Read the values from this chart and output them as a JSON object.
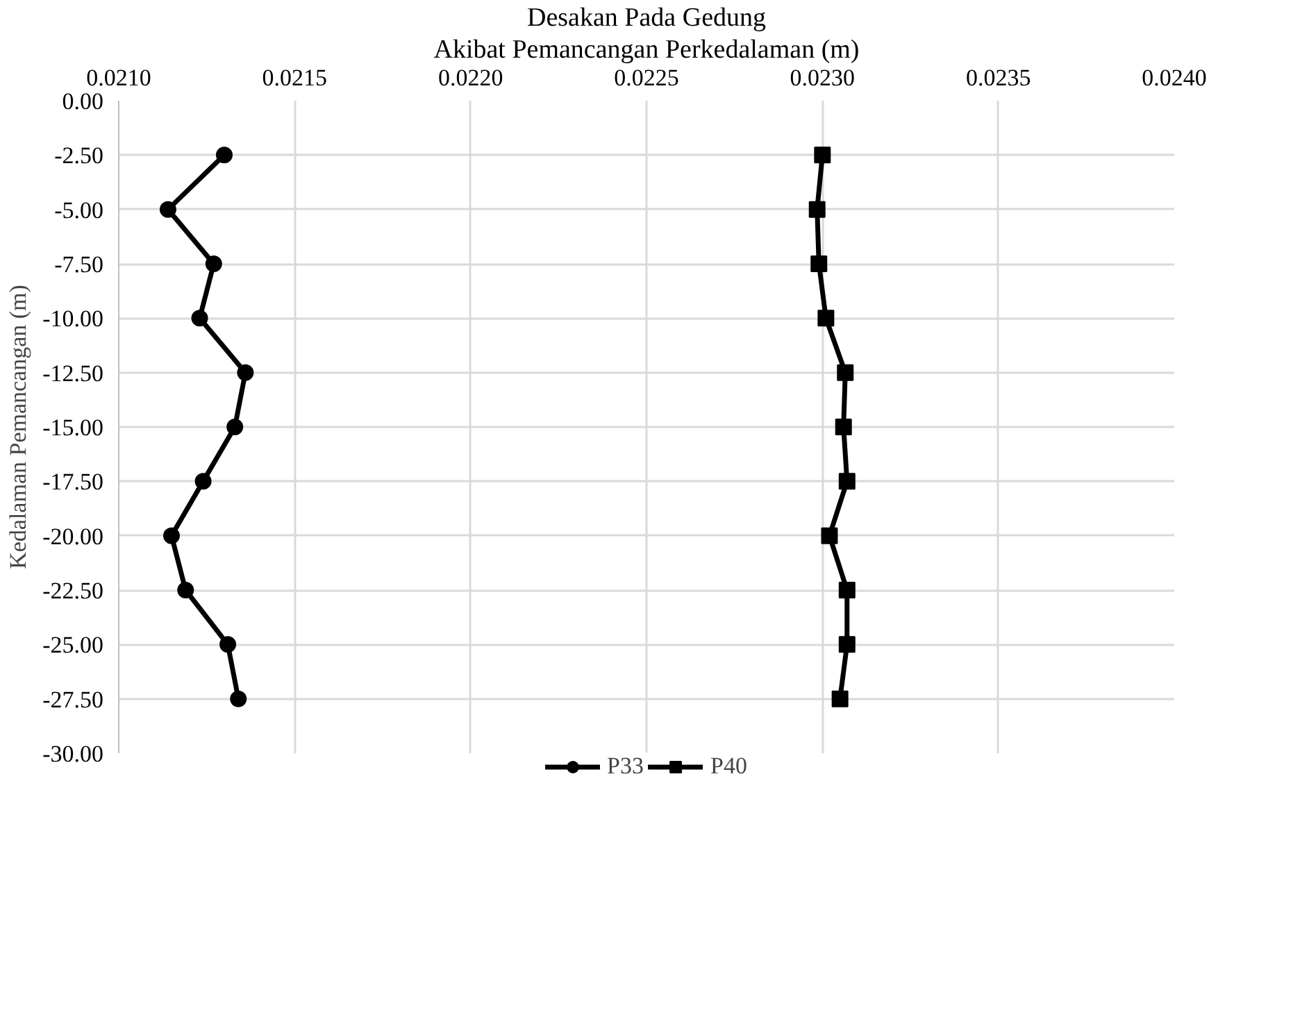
{
  "chart_data": {
    "type": "line",
    "title": "Desakan Pada Gedung",
    "subtitle": "Akibat Pemancangan Perkedalaman (m)",
    "ylabel": "Kedalaman Pemancangan (m)",
    "series": [
      {
        "name": "P33",
        "color": "#000000",
        "marker": "circle",
        "x": [
          0.0213,
          0.02114,
          0.02127,
          0.02123,
          0.02136,
          0.02133,
          0.02124,
          0.02115,
          0.02119,
          0.02131,
          0.02134
        ],
        "values": [
          -2.5,
          -5,
          -7.5,
          -10,
          -12.5,
          -15,
          -17.5,
          -20,
          -22.5,
          -25,
          -27.5
        ]
      },
      {
        "name": "P40",
        "color": "#000000",
        "marker": "square",
        "x": [
          0.023,
          0.022985,
          0.02299,
          0.02301,
          0.023065,
          0.02306,
          0.02307,
          0.02302,
          0.02307,
          0.02307,
          0.02305
        ],
        "values": [
          -2.5,
          -5,
          -7.5,
          -10,
          -12.5,
          -15,
          -17.5,
          -20,
          -22.5,
          -25,
          -27.5
        ]
      }
    ],
    "xlim": [
      0.021,
      0.024
    ],
    "xticks": [
      {
        "value": 0.021,
        "label": "0.0210"
      },
      {
        "value": 0.0215,
        "label": "0.0215"
      },
      {
        "value": 0.022,
        "label": "0.0220"
      },
      {
        "value": 0.0225,
        "label": "0.0225"
      },
      {
        "value": 0.023,
        "label": "0.0230"
      },
      {
        "value": 0.0235,
        "label": "0.0235"
      },
      {
        "value": 0.024,
        "label": "0.0240"
      }
    ],
    "ylim": [
      -30,
      0
    ],
    "yticks": [
      {
        "value": 0,
        "label": "0.00"
      },
      {
        "value": -2.5,
        "label": "-2.50"
      },
      {
        "value": -5,
        "label": "-5.00"
      },
      {
        "value": -7.5,
        "label": "-7.50"
      },
      {
        "value": -10,
        "label": "-10.00"
      },
      {
        "value": -12.5,
        "label": "-12.50"
      },
      {
        "value": -15,
        "label": "-15.00"
      },
      {
        "value": -17.5,
        "label": "-17.50"
      },
      {
        "value": -20,
        "label": "-20.00"
      },
      {
        "value": -22.5,
        "label": "-22.50"
      },
      {
        "value": -25,
        "label": "-25.00"
      },
      {
        "value": -27.5,
        "label": "-27.50"
      },
      {
        "value": -30,
        "label": "-30.00"
      }
    ],
    "grid": true,
    "legend": "bottom",
    "line_style": "solid"
  }
}
